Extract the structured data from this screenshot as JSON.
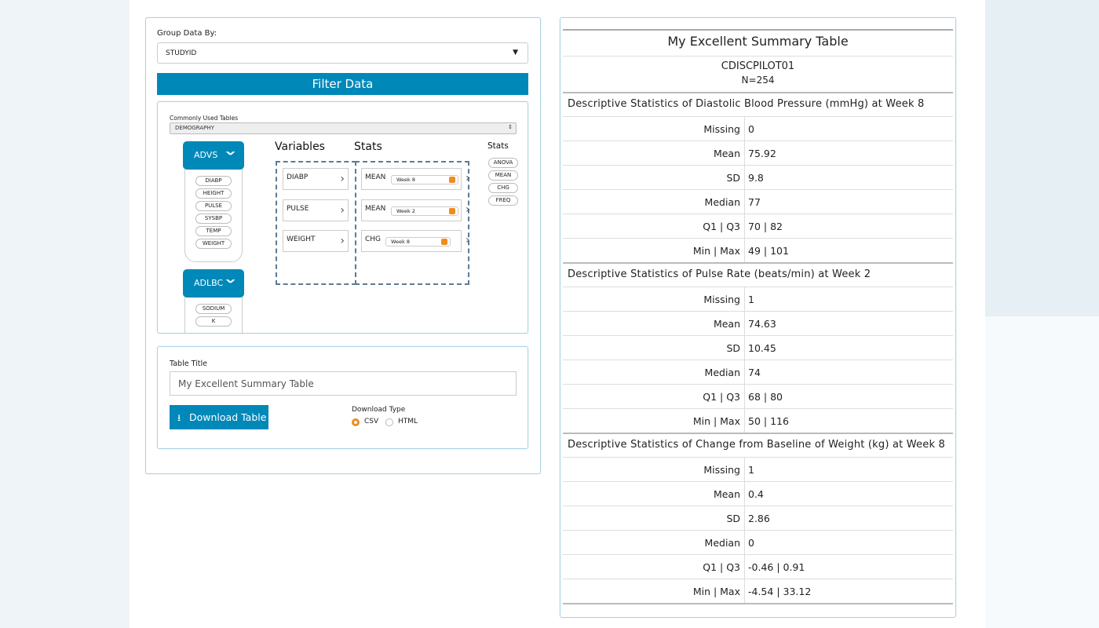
{
  "left_panel": {
    "group_by": {
      "label": "Group Data By:",
      "value": "STUDYID"
    },
    "filter_button": "Filter Data",
    "builder": {
      "tables_label": "Commonly Used Tables",
      "tables_value": "DEMOGRAPHY",
      "datasets": [
        {
          "name": "ADVS",
          "variables": [
            "DIABP",
            "HEIGHT",
            "PULSE",
            "SYSBP",
            "TEMP",
            "WEIGHT"
          ]
        },
        {
          "name": "ADLBC",
          "variables": [
            "SODIUM",
            "K"
          ]
        }
      ],
      "variables_header": "Variables",
      "stats_header": "Stats",
      "rows": [
        {
          "variable": "DIABP",
          "stat": "MEAN",
          "week": "Week 8"
        },
        {
          "variable": "PULSE",
          "stat": "MEAN",
          "week": "Week 2"
        },
        {
          "variable": "WEIGHT",
          "stat": "CHG",
          "week": "Week 8"
        }
      ],
      "stat_palette_header": "Stats",
      "stat_options": [
        "ANOVA",
        "MEAN",
        "CHG",
        "FREQ"
      ]
    },
    "export": {
      "title_label": "Table Title",
      "title_value": "My Excellent Summary Table",
      "download_button": "Download Table",
      "download_type_label": "Download Type",
      "download_types": [
        "CSV",
        "HTML"
      ]
    }
  },
  "summary_table": {
    "title": "My Excellent Summary Table",
    "study": "CDISCPILOT01",
    "n": "N=254",
    "sections": [
      {
        "heading": "Descriptive Statistics of Diastolic Blood Pressure (mmHg) at Week 8",
        "rows": [
          [
            "Missing",
            "0"
          ],
          [
            "Mean",
            "75.92"
          ],
          [
            "SD",
            "9.8"
          ],
          [
            "Median",
            "77"
          ],
          [
            "Q1 | Q3",
            "70 | 82"
          ],
          [
            "Min | Max",
            "49 | 101"
          ]
        ]
      },
      {
        "heading": "Descriptive Statistics of Pulse Rate (beats/min) at Week 2",
        "rows": [
          [
            "Missing",
            "1"
          ],
          [
            "Mean",
            "74.63"
          ],
          [
            "SD",
            "10.45"
          ],
          [
            "Median",
            "74"
          ],
          [
            "Q1 | Q3",
            "68 | 80"
          ],
          [
            "Min | Max",
            "50 | 116"
          ]
        ]
      },
      {
        "heading": "Descriptive Statistics of Change from Baseline of Weight (kg) at Week 8",
        "rows": [
          [
            "Missing",
            "1"
          ],
          [
            "Mean",
            "0.4"
          ],
          [
            "SD",
            "2.86"
          ],
          [
            "Median",
            "0"
          ],
          [
            "Q1 | Q3",
            "-0.46 | 0.91"
          ],
          [
            "Min | Max",
            "-4.54 | 33.12"
          ]
        ]
      }
    ]
  }
}
